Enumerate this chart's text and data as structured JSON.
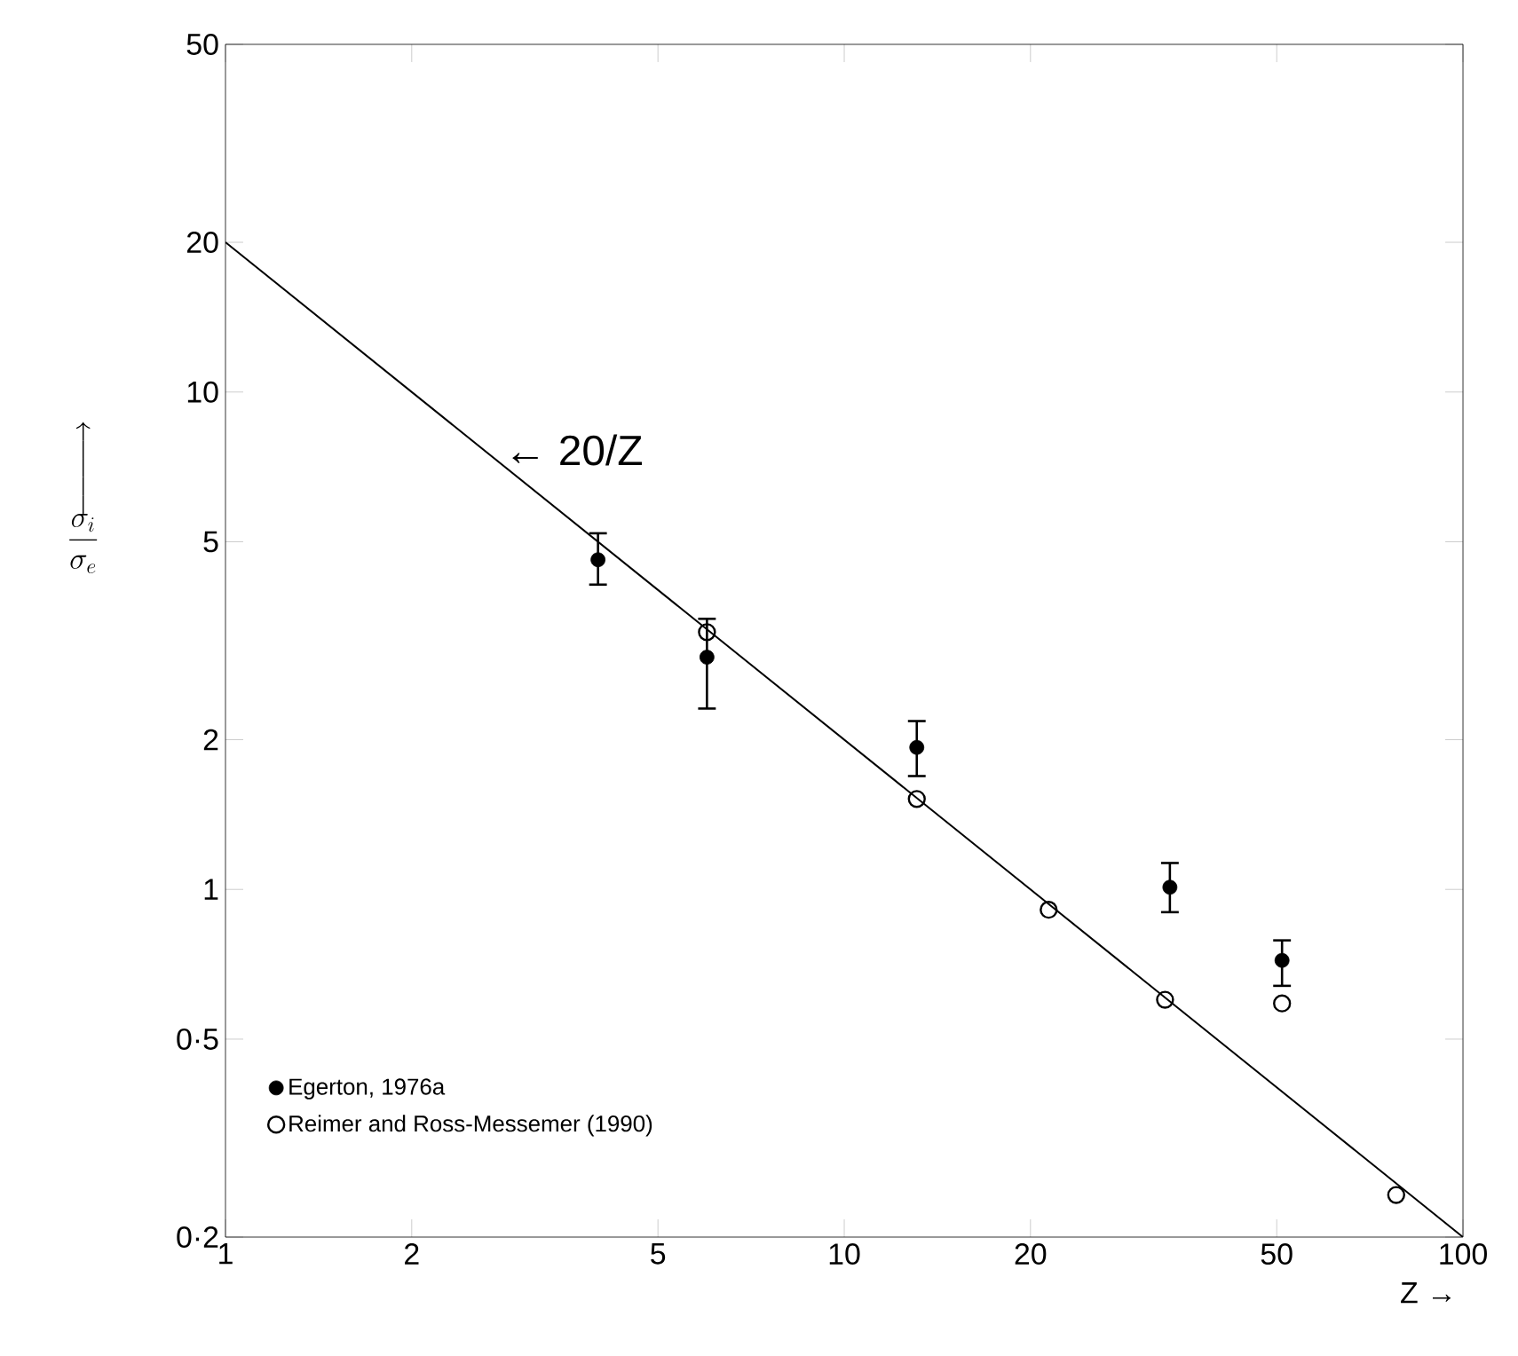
{
  "chart_data": {
    "type": "scatter",
    "xlabel": "Z →",
    "ylabel": "\\begin{array}{c}\\Bigg\\uparrow\\\\ \\dfrac{\\sigma_i}{\\sigma_e}\\end{array}",
    "log": "xy",
    "xlim": [
      1,
      100
    ],
    "xticks": [
      1,
      2,
      5,
      10,
      20,
      50,
      100
    ],
    "ylim": [
      0.2,
      50
    ],
    "yticks": [
      {
        "value": 0.2,
        "label": "0·2"
      },
      {
        "value": 0.5,
        "label": "0·5"
      },
      1,
      2,
      5,
      10,
      20,
      50
    ],
    "legend": "bottom left",
    "grid": false,
    "series": [
      {
        "name": "Egerton, 1976a",
        "color": "#000000",
        "marker": "circle",
        "x": [
          4.0,
          6.0,
          13.1,
          33.6,
          51
        ],
        "values": [
          4.6,
          2.93,
          1.93,
          1.01,
          0.72
        ],
        "errors": [
          [
            4.1,
            5.2
          ],
          [
            2.31,
            3.5
          ],
          [
            1.69,
            2.18
          ],
          [
            0.9,
            1.13
          ],
          [
            0.64,
            0.79
          ]
        ]
      },
      {
        "name": "Reimer and Ross-Messemer (1990)",
        "color": "#000000",
        "marker": "circle",
        "x": [
          6.0,
          13.1,
          21.4,
          33,
          51,
          78
        ],
        "values": [
          3.29,
          1.52,
          0.91,
          0.6,
          0.59,
          0.243
        ]
      },
      {
        "type": "line",
        "color": "#000000",
        "line_style": "solid",
        "marker": "none",
        "x": [
          1,
          100
        ],
        "values": [
          20,
          0.2
        ]
      }
    ],
    "annotations": [
      "← 20/Z"
    ]
  }
}
